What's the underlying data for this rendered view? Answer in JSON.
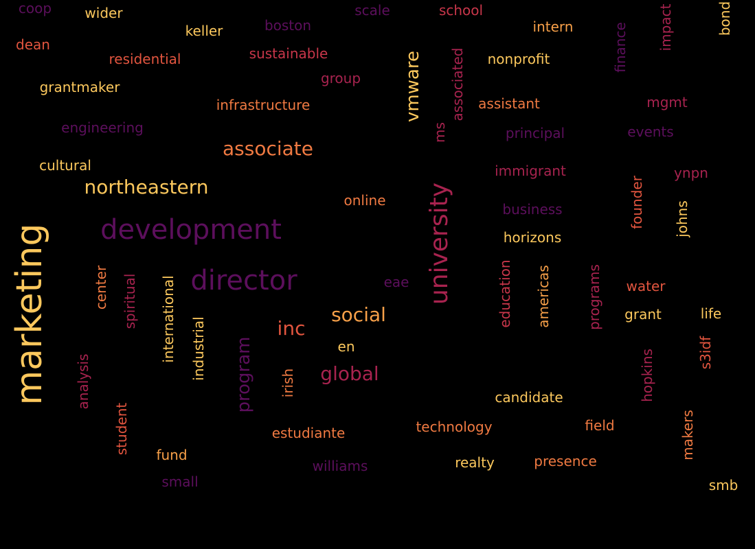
{
  "palette": {
    "background": "#000000",
    "colors": [
      "#5c0f5c",
      "#7d1a5c",
      "#a8234f",
      "#c8364a",
      "#e2553f",
      "#f07a42",
      "#f7a049",
      "#fcc85d"
    ]
  },
  "words": [
    {
      "text": "marketing",
      "color": "#fcc85d",
      "rotated": true
    },
    {
      "text": "development",
      "color": "#5c0f5c",
      "rotated": false
    },
    {
      "text": "director",
      "color": "#5c0f5c",
      "rotated": false
    },
    {
      "text": "university",
      "color": "#a8234f",
      "rotated": true
    },
    {
      "text": "northeastern",
      "color": "#fcc85d",
      "rotated": false
    },
    {
      "text": "associate",
      "color": "#f07a42",
      "rotated": false
    },
    {
      "text": "social",
      "color": "#f7a049",
      "rotated": false
    },
    {
      "text": "inc",
      "color": "#e2553f",
      "rotated": false
    },
    {
      "text": "global",
      "color": "#a8234f",
      "rotated": false
    },
    {
      "text": "program",
      "color": "#5c0f5c",
      "rotated": true
    },
    {
      "text": "vmware",
      "color": "#fcc85d",
      "rotated": true
    },
    {
      "text": "coop",
      "color": "#5c0f5c",
      "rotated": false
    },
    {
      "text": "wider",
      "color": "#fcc85d",
      "rotated": false
    },
    {
      "text": "keller",
      "color": "#fcc85d",
      "rotated": false
    },
    {
      "text": "boston",
      "color": "#5c0f5c",
      "rotated": false
    },
    {
      "text": "scale",
      "color": "#5c0f5c",
      "rotated": false
    },
    {
      "text": "school",
      "color": "#c8364a",
      "rotated": false
    },
    {
      "text": "intern",
      "color": "#f7a049",
      "rotated": false
    },
    {
      "text": "finance",
      "color": "#5c0f5c",
      "rotated": true
    },
    {
      "text": "impact",
      "color": "#a8234f",
      "rotated": true
    },
    {
      "text": "bond",
      "color": "#fcc85d",
      "rotated": true
    },
    {
      "text": "dean",
      "color": "#e2553f",
      "rotated": false
    },
    {
      "text": "residential",
      "color": "#e2553f",
      "rotated": false
    },
    {
      "text": "sustainable",
      "color": "#c8364a",
      "rotated": false
    },
    {
      "text": "group",
      "color": "#a8234f",
      "rotated": false
    },
    {
      "text": "nonprofit",
      "color": "#fcc85d",
      "rotated": false
    },
    {
      "text": "associated",
      "color": "#a8234f",
      "rotated": true
    },
    {
      "text": "grantmaker",
      "color": "#fcc85d",
      "rotated": false
    },
    {
      "text": "infrastructure",
      "color": "#f07a42",
      "rotated": false
    },
    {
      "text": "assistant",
      "color": "#f07a42",
      "rotated": false
    },
    {
      "text": "mgmt",
      "color": "#a8234f",
      "rotated": false
    },
    {
      "text": "engineering",
      "color": "#5c0f5c",
      "rotated": false
    },
    {
      "text": "ms",
      "color": "#a8234f",
      "rotated": true
    },
    {
      "text": "principal",
      "color": "#5c0f5c",
      "rotated": false
    },
    {
      "text": "events",
      "color": "#5c0f5c",
      "rotated": false
    },
    {
      "text": "cultural",
      "color": "#fcc85d",
      "rotated": false
    },
    {
      "text": "immigrant",
      "color": "#a8234f",
      "rotated": false
    },
    {
      "text": "ynpn",
      "color": "#a8234f",
      "rotated": false
    },
    {
      "text": "online",
      "color": "#f07a42",
      "rotated": false
    },
    {
      "text": "founder",
      "color": "#e2553f",
      "rotated": true
    },
    {
      "text": "business",
      "color": "#5c0f5c",
      "rotated": false
    },
    {
      "text": "johns",
      "color": "#fcc85d",
      "rotated": true
    },
    {
      "text": "horizons",
      "color": "#fcc85d",
      "rotated": false
    },
    {
      "text": "center",
      "color": "#f07a42",
      "rotated": true
    },
    {
      "text": "spiritual",
      "color": "#a8234f",
      "rotated": true
    },
    {
      "text": "international",
      "color": "#fcc85d",
      "rotated": true
    },
    {
      "text": "eae",
      "color": "#5c0f5c",
      "rotated": false
    },
    {
      "text": "education",
      "color": "#c8364a",
      "rotated": true
    },
    {
      "text": "americas",
      "color": "#f7a049",
      "rotated": true
    },
    {
      "text": "programs",
      "color": "#a8234f",
      "rotated": true
    },
    {
      "text": "water",
      "color": "#e2553f",
      "rotated": false
    },
    {
      "text": "grant",
      "color": "#fcc85d",
      "rotated": false
    },
    {
      "text": "life",
      "color": "#fcc85d",
      "rotated": false
    },
    {
      "text": "industrial",
      "color": "#fcc85d",
      "rotated": true
    },
    {
      "text": "en",
      "color": "#fcc85d",
      "rotated": false
    },
    {
      "text": "s3idf",
      "color": "#e2553f",
      "rotated": true
    },
    {
      "text": "analysis",
      "color": "#a8234f",
      "rotated": true
    },
    {
      "text": "irish",
      "color": "#f07a42",
      "rotated": true
    },
    {
      "text": "hopkins",
      "color": "#a8234f",
      "rotated": true
    },
    {
      "text": "candidate",
      "color": "#fcc85d",
      "rotated": false
    },
    {
      "text": "student",
      "color": "#e2553f",
      "rotated": true
    },
    {
      "text": "estudiante",
      "color": "#f07a42",
      "rotated": false
    },
    {
      "text": "technology",
      "color": "#f07a42",
      "rotated": false
    },
    {
      "text": "field",
      "color": "#f07a42",
      "rotated": false
    },
    {
      "text": "makers",
      "color": "#f07a42",
      "rotated": true
    },
    {
      "text": "fund",
      "color": "#f7a049",
      "rotated": false
    },
    {
      "text": "williams",
      "color": "#5c0f5c",
      "rotated": false
    },
    {
      "text": "realty",
      "color": "#fcc85d",
      "rotated": false
    },
    {
      "text": "presence",
      "color": "#f07a42",
      "rotated": false
    },
    {
      "text": "small",
      "color": "#5c0f5c",
      "rotated": false
    },
    {
      "text": "smb",
      "color": "#fcc85d",
      "rotated": false
    }
  ]
}
